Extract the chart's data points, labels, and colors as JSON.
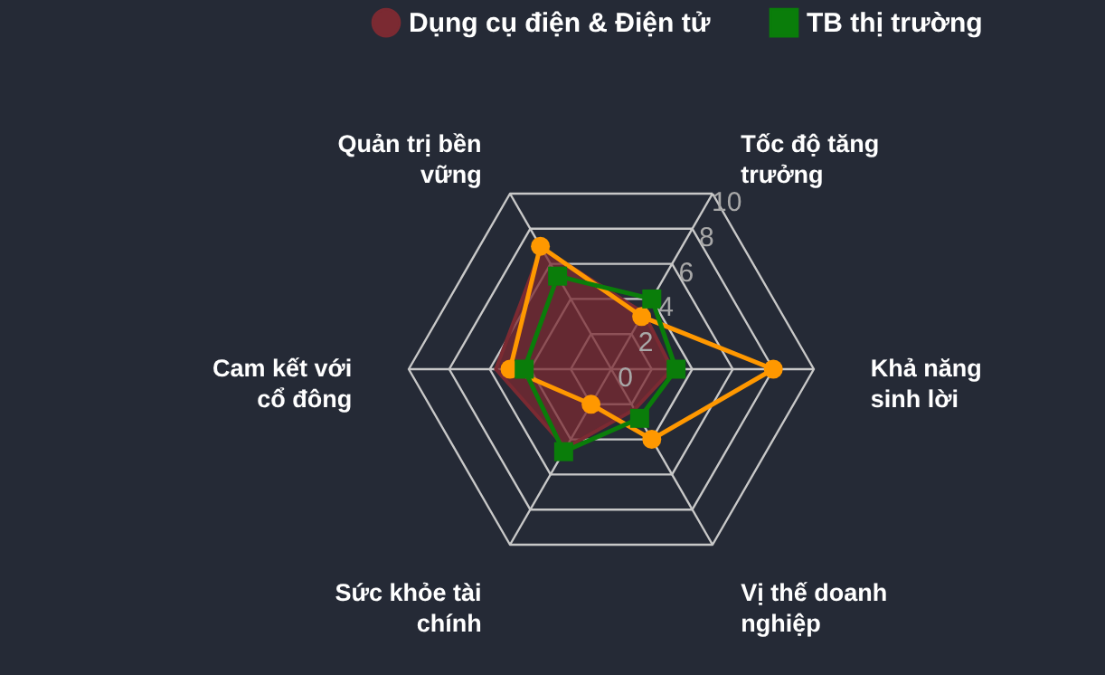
{
  "chart_data": {
    "type": "radar",
    "categories": [
      "Tốc độ tăng trưởng",
      "Khả năng sinh lời",
      "Vị thế doanh nghiệp",
      "Sức khỏe tài chính",
      "Cam kết với cổ đông",
      "Quản trị bền vững"
    ],
    "ylim": [
      0,
      10
    ],
    "yticks": [
      0,
      2,
      4,
      6,
      8,
      10
    ],
    "grid": true,
    "legend": "top",
    "series": [
      {
        "marker": "circle",
        "color": "#ff9800",
        "values": [
          3,
          8,
          4,
          2,
          5,
          7
        ]
      },
      {
        "name": "Dụng cụ điện & Điện tử",
        "type": "area",
        "color": "#7b2a32",
        "values": [
          3.2,
          3,
          2.3,
          4.5,
          5.7,
          6.9
        ]
      },
      {
        "name": "TB thị trường",
        "marker": "square",
        "color": "#0a7d0a",
        "values": [
          4,
          3.2,
          2.8,
          4.7,
          4.3,
          5.3
        ]
      }
    ]
  }
}
